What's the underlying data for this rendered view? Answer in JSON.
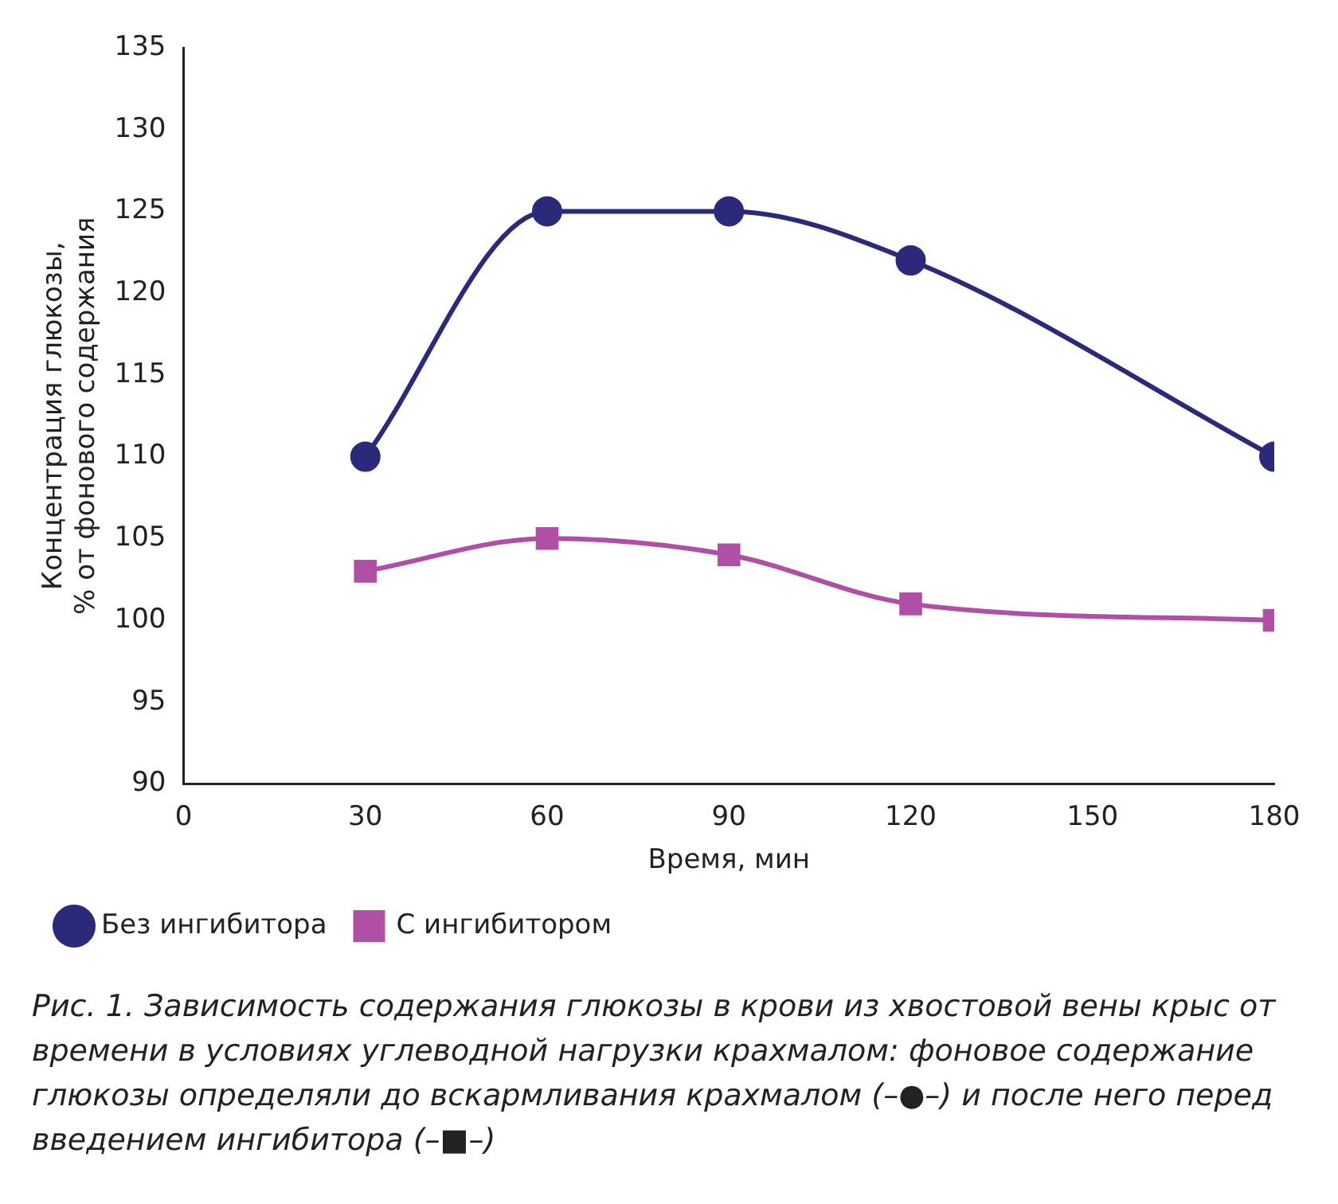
{
  "chart_data": {
    "type": "line",
    "xlabel": "Время, мин",
    "ylabel": "Концентрация глюкозы,\n% от фонового содержания",
    "x": [
      30,
      60,
      90,
      120,
      180
    ],
    "series": [
      {
        "name": "Без ингибитора",
        "color": "#2b2a7a",
        "marker": "circle",
        "values": [
          110,
          125,
          125,
          122,
          110
        ]
      },
      {
        "name": "С ингибитором",
        "color": "#b04fa6",
        "marker": "square",
        "values": [
          103,
          105,
          104,
          101,
          100
        ]
      }
    ],
    "xlim": [
      0,
      180
    ],
    "xticks": [
      0,
      30,
      60,
      90,
      120,
      150,
      180
    ],
    "ylim": [
      90,
      135
    ],
    "yticks": [
      90,
      95,
      100,
      105,
      110,
      115,
      120,
      125,
      130,
      135
    ],
    "grid": false,
    "legend": "bottom left",
    "line_style": "solid",
    "annotations": [
      "Рис. 1. Зависимость содержания глюкозы в крови из хвостовой вены крыс от времени в условиях углеводной нагрузки крахмалом: фоновое содержание глюкозы определяли до вскармливания крахмалом (–●–) и после него перед введением ингибитора (–■–)"
    ]
  }
}
